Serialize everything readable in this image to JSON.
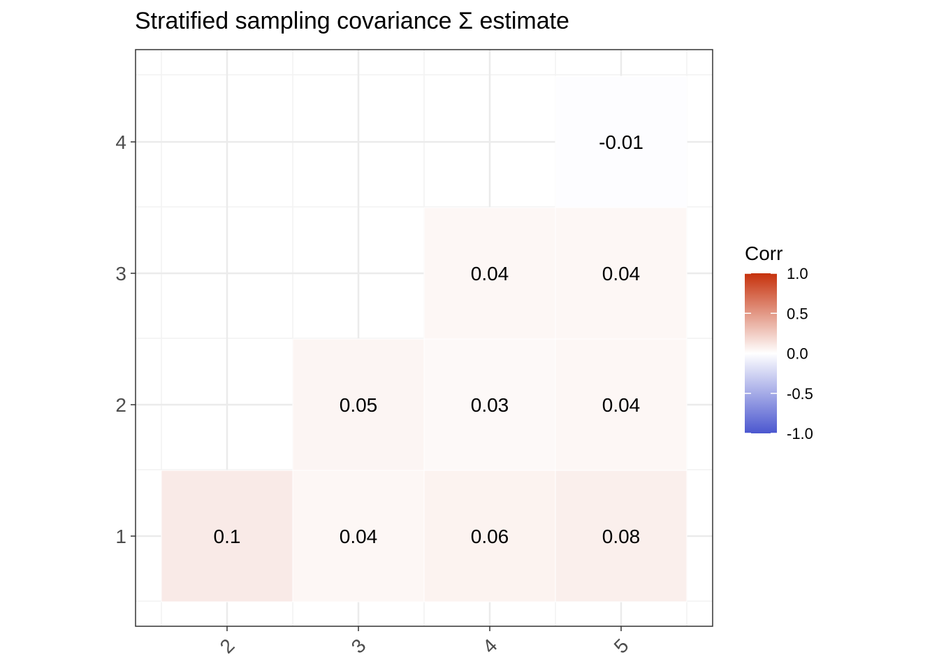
{
  "chart_data": {
    "type": "heatmap",
    "title": "Stratified sampling covariance Σ estimate",
    "xlabel": "",
    "ylabel": "",
    "x_categories": [
      "2",
      "3",
      "4",
      "5"
    ],
    "y_categories": [
      "1",
      "2",
      "3",
      "4"
    ],
    "cells": [
      {
        "x": "2",
        "y": "1",
        "value": 0.1,
        "label": "0.1"
      },
      {
        "x": "3",
        "y": "1",
        "value": 0.04,
        "label": "0.04"
      },
      {
        "x": "4",
        "y": "1",
        "value": 0.06,
        "label": "0.06"
      },
      {
        "x": "5",
        "y": "1",
        "value": 0.08,
        "label": "0.08"
      },
      {
        "x": "3",
        "y": "2",
        "value": 0.05,
        "label": "0.05"
      },
      {
        "x": "4",
        "y": "2",
        "value": 0.03,
        "label": "0.03"
      },
      {
        "x": "5",
        "y": "2",
        "value": 0.04,
        "label": "0.04"
      },
      {
        "x": "4",
        "y": "3",
        "value": 0.04,
        "label": "0.04"
      },
      {
        "x": "5",
        "y": "3",
        "value": 0.04,
        "label": "0.04"
      },
      {
        "x": "5",
        "y": "4",
        "value": -0.01,
        "label": "-0.01"
      }
    ],
    "legend": {
      "title": "Corr",
      "position": "right",
      "limits": [
        -1,
        1
      ],
      "ticks": [
        1.0,
        0.5,
        0.0,
        -0.5,
        -1.0
      ],
      "tick_labels": [
        "1.0",
        "0.5",
        "0.0",
        "-0.5",
        "-1.0"
      ],
      "colors": {
        "low": "#4b57cf",
        "mid": "#ffffff",
        "high": "#c6310c"
      }
    },
    "grid": true,
    "colors": {
      "panel_border": "#333333",
      "grid_major": "#ebebeb",
      "grid_minor": "#f2f2f2",
      "tick_text": "#4d4d4d"
    }
  }
}
